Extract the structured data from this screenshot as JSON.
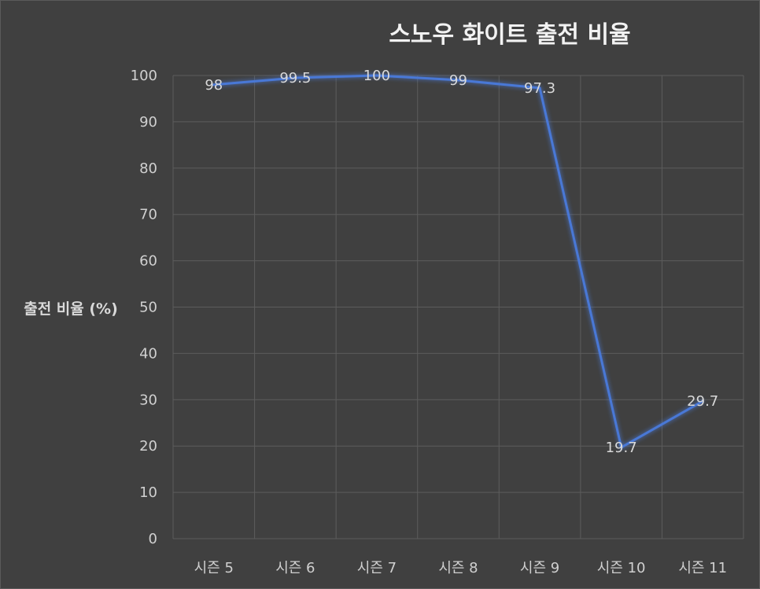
{
  "chart_data": {
    "type": "line",
    "title": "스노우 화이트 출전 비율",
    "xlabel": "",
    "ylabel": "출전 비율 (%)",
    "categories": [
      "시즌 5",
      "시즌 6",
      "시즌 7",
      "시즌 8",
      "시즌 9",
      "시즌 10",
      "시즌 11"
    ],
    "series": [
      {
        "values": [
          98,
          99.5,
          100,
          99,
          97.3,
          19.7,
          29.7
        ]
      }
    ],
    "data_labels": [
      "98",
      "99.5",
      "100",
      "99",
      "97.3",
      "19.7",
      "29.7"
    ],
    "ylim": [
      0,
      100
    ],
    "yticks": [
      "0",
      "10",
      "20",
      "30",
      "40",
      "50",
      "60",
      "70",
      "80",
      "90",
      "100"
    ],
    "grid": true,
    "legend": "none",
    "colors": {
      "line": "#4a78d6",
      "background": "#404040",
      "grid": "#5c5c5c"
    }
  }
}
